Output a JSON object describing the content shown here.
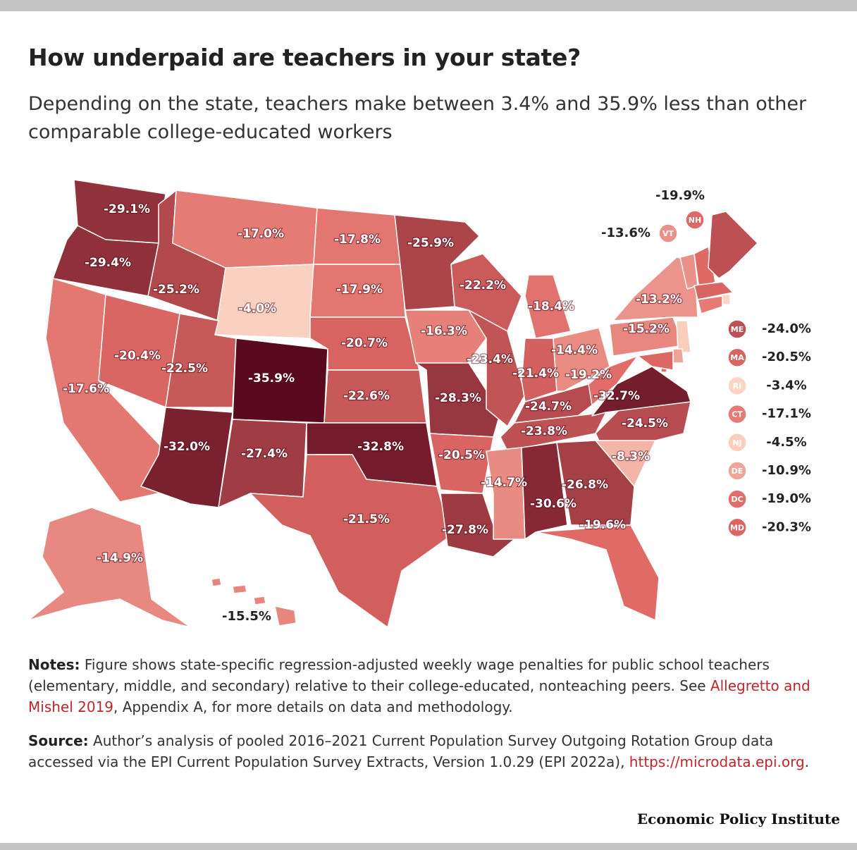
{
  "chart_data": {
    "type": "choropleth",
    "title": "How underpaid are teachers in your state?",
    "subtitle": "Depending on the state, teachers make between 3.4% and 35.9% less than other comparable college-educated workers",
    "color_scale": [
      "#5a0a1e",
      "#e06a66",
      "#fbd5c3"
    ],
    "names": [
      null,
      null,
      null,
      null,
      null,
      null,
      null,
      null,
      null,
      null,
      null,
      null,
      null,
      null,
      null,
      null,
      null,
      null,
      null,
      null,
      null,
      null,
      null,
      null,
      null,
      null,
      null,
      null,
      null,
      null,
      null,
      null,
      null,
      null,
      null,
      null,
      null,
      null,
      null,
      null,
      null,
      "VT",
      "NH",
      "ME",
      "MA",
      "RI",
      "CT",
      "NJ",
      "DE",
      "DC",
      "MD"
    ],
    "values": [
      -29.1,
      -29.4,
      -17.6,
      -20.4,
      -25.2,
      -17.0,
      -4.0,
      -22.5,
      -35.9,
      -32.0,
      -27.4,
      -17.8,
      -17.9,
      -20.7,
      -22.6,
      -32.8,
      -21.5,
      -25.9,
      -16.3,
      -28.3,
      -20.5,
      -27.8,
      -22.2,
      -23.4,
      -18.4,
      -21.4,
      -14.4,
      -24.7,
      -23.8,
      -14.7,
      -30.6,
      -26.8,
      -19.6,
      -8.3,
      -24.5,
      -32.7,
      -19.2,
      -15.2,
      -13.2,
      -14.9,
      -15.5,
      -13.6,
      -19.9,
      -24.0,
      -20.5,
      -3.4,
      -17.1,
      -4.5,
      -10.9,
      -19.0,
      -20.3
    ],
    "value_labels": [
      "-29.1%",
      "-29.4%",
      "-17.6%",
      "-20.4%",
      "-25.2%",
      "-17.0%",
      "-4.0%",
      "-22.5%",
      "-35.9%",
      "-32.0%",
      "-27.4%",
      "-17.8%",
      "-17.9%",
      "-20.7%",
      "-22.6%",
      "-32.8%",
      "-21.5%",
      "-25.9%",
      "-16.3%",
      "-28.3%",
      "-20.5%",
      "-27.8%",
      "-22.2%",
      "-23.4%",
      "-18.4%",
      "-21.4%",
      "-14.4%",
      "-24.7%",
      "-23.8%",
      "-14.7%",
      "-30.6%",
      "-26.8%",
      "-19.6%",
      "-8.3%",
      "-24.5%",
      "-32.7%",
      "-19.2%",
      "-15.2%",
      "-13.2%",
      "-14.9%",
      "-15.5%",
      "-13.6%",
      "-19.9%",
      "-24.0%",
      "-20.5%",
      "-3.4%",
      "-17.1%",
      "-4.5%",
      "-10.9%",
      "-19.0%",
      "-20.3%"
    ],
    "notes": {
      "label": "Notes:",
      "text_before": "Figure shows state-specific regression-adjusted weekly wage penalties for public school teachers (elementary, middle, and secondary) relative to their college-educated, nonteaching peers. See ",
      "link": "Allegretto and Mishel 2019",
      "text_after": ", Appendix A, for more details on data and methodology."
    },
    "source": {
      "label": "Source:",
      "text_before": "Author’s analysis of pooled 2016–2021 Current Population Survey Outgoing Rotation Group data accessed via the EPI Current Population Survey Extracts, Version 1.0.29 (EPI 2022a), ",
      "link": "https://microdata.epi.org",
      "text_after": "."
    },
    "footer": "Economic Policy Institute"
  }
}
